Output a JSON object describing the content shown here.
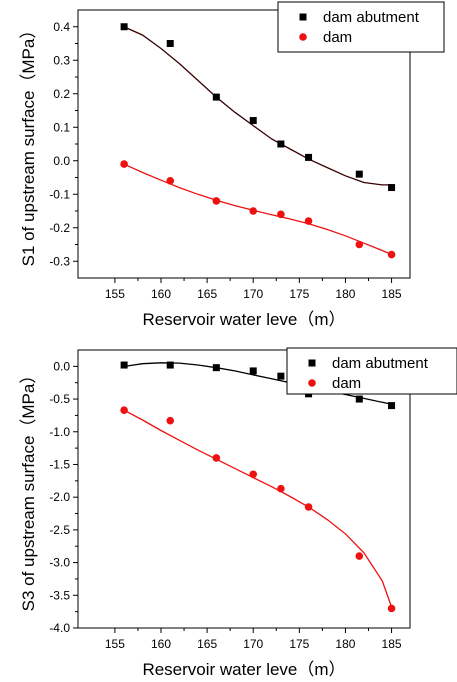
{
  "chart_data": [
    {
      "type": "scatter",
      "xlabel": "Reservoir water leve（m）",
      "ylabel": "S1 of upstream surface（MPa）",
      "xlim": [
        151,
        187
      ],
      "ylim": [
        -0.35,
        0.45
      ],
      "xticks": [
        155,
        160,
        165,
        170,
        175,
        180,
        185
      ],
      "yticks": [
        -0.3,
        -0.2,
        -0.1,
        0.0,
        0.1,
        0.2,
        0.3,
        0.4
      ],
      "ytick_labels": [
        "-0.3",
        "-0.2",
        "-0.1",
        "0.0",
        "0.1",
        "0.2",
        "0.3",
        "0.4"
      ],
      "legend_position": "top-right",
      "series": [
        {
          "name": "dam abutment",
          "marker": "square",
          "color": "#000000",
          "fit_color": "#3a0000",
          "x": [
            156,
            161,
            166,
            170,
            173,
            176,
            181.5,
            185
          ],
          "y": [
            0.4,
            0.35,
            0.19,
            0.12,
            0.05,
            0.01,
            -0.04,
            -0.08
          ],
          "fit_curve": {
            "x": [
              156,
              158,
              160,
              162,
              164,
              166,
              168,
              170,
              172,
              174,
              176,
              178,
              180,
              182,
              184,
              185
            ],
            "y": [
              0.4,
              0.375,
              0.335,
              0.29,
              0.24,
              0.19,
              0.145,
              0.105,
              0.065,
              0.035,
              0.005,
              -0.02,
              -0.045,
              -0.065,
              -0.072,
              -0.072
            ]
          }
        },
        {
          "name": "dam",
          "marker": "circle",
          "color": "#ee1111",
          "fit_color": "#ee1111",
          "x": [
            156,
            161,
            166,
            170,
            173,
            176,
            181.5,
            185
          ],
          "y": [
            -0.01,
            -0.06,
            -0.12,
            -0.15,
            -0.16,
            -0.18,
            -0.25,
            -0.28
          ],
          "fit_curve": {
            "x": [
              156,
              158,
              160,
              162,
              164,
              166,
              168,
              170,
              172,
              174,
              176,
              178,
              180,
              182,
              184,
              185
            ],
            "y": [
              -0.01,
              -0.035,
              -0.058,
              -0.08,
              -0.1,
              -0.118,
              -0.134,
              -0.148,
              -0.161,
              -0.174,
              -0.188,
              -0.205,
              -0.224,
              -0.246,
              -0.268,
              -0.28
            ]
          }
        }
      ]
    },
    {
      "type": "scatter",
      "xlabel": "Reservoir water leve（m）",
      "ylabel": "S3 of upstream surface（MPa）",
      "xlim": [
        151,
        187
      ],
      "ylim": [
        -4.0,
        0.25
      ],
      "xticks": [
        155,
        160,
        165,
        170,
        175,
        180,
        185
      ],
      "yticks": [
        -4.0,
        -3.5,
        -3.0,
        -2.5,
        -2.0,
        -1.5,
        -1.0,
        -0.5,
        0.0
      ],
      "ytick_labels": [
        "-4.0",
        "-3.5",
        "-3.0",
        "-2.5",
        "-2.0",
        "-1.5",
        "-1.0",
        "-0.5",
        "0.0"
      ],
      "legend_position": "top-right",
      "series": [
        {
          "name": "dam abutment",
          "marker": "square",
          "color": "#000000",
          "fit_color": "#000000",
          "x": [
            156,
            161,
            166,
            170,
            173,
            176,
            181.5,
            185
          ],
          "y": [
            0.02,
            0.02,
            -0.02,
            -0.07,
            -0.15,
            -0.42,
            -0.5,
            -0.6
          ],
          "fit_curve": {
            "x": [
              156,
              158,
              160,
              162,
              164,
              166,
              168,
              170,
              172,
              174,
              176,
              178,
              180,
              182,
              184,
              185
            ],
            "y": [
              0.0,
              0.04,
              0.055,
              0.05,
              0.02,
              -0.02,
              -0.07,
              -0.13,
              -0.19,
              -0.25,
              -0.31,
              -0.37,
              -0.43,
              -0.49,
              -0.55,
              -0.58
            ]
          }
        },
        {
          "name": "dam",
          "marker": "circle",
          "color": "#ee1111",
          "fit_color": "#ee1111",
          "x": [
            156,
            161,
            166,
            170,
            173,
            176,
            181.5,
            185
          ],
          "y": [
            -0.67,
            -0.83,
            -1.4,
            -1.65,
            -1.87,
            -2.15,
            -2.9,
            -3.7
          ],
          "fit_curve": {
            "x": [
              156,
              158,
              160,
              162,
              164,
              166,
              168,
              170,
              172,
              174,
              176,
              178,
              180,
              182,
              184,
              185
            ],
            "y": [
              -0.67,
              -0.82,
              -0.98,
              -1.13,
              -1.28,
              -1.42,
              -1.56,
              -1.7,
              -1.84,
              -1.99,
              -2.15,
              -2.34,
              -2.56,
              -2.85,
              -3.28,
              -3.68
            ]
          }
        }
      ]
    }
  ]
}
